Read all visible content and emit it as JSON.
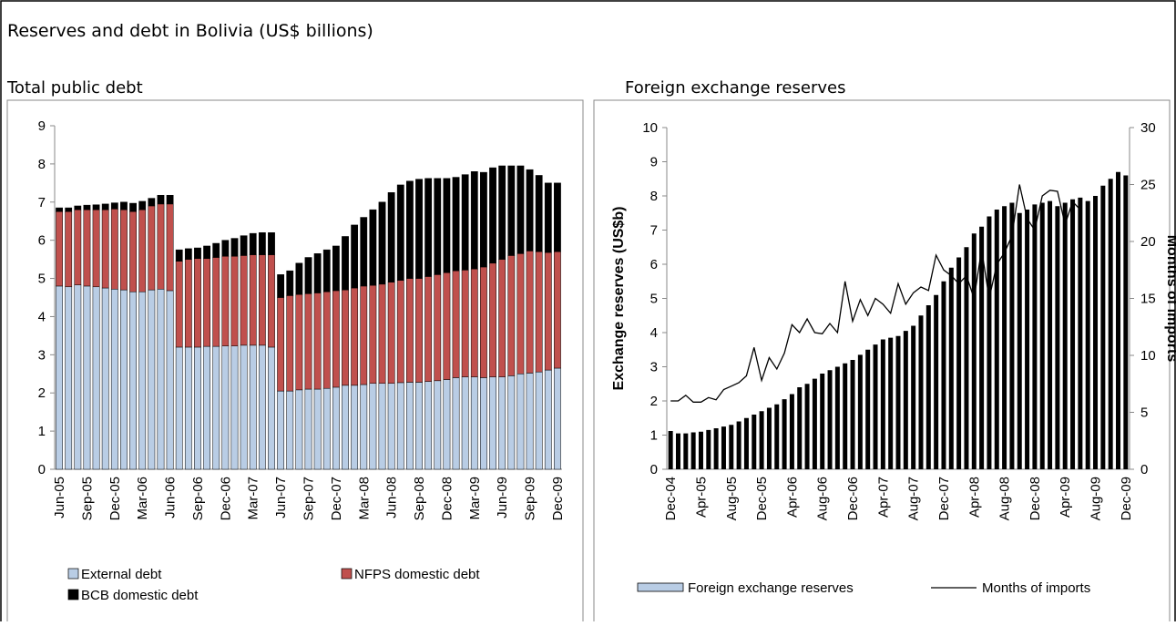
{
  "page_title": "Reserves and debt in Bolivia (US$ billions)",
  "chart_data": [
    {
      "type": "stacked_bar",
      "title": "Total public debt",
      "categories": [
        "Jun-05",
        null,
        null,
        "Sep-05",
        null,
        null,
        "Dec-05",
        null,
        null,
        "Mar-06",
        null,
        null,
        "Jun-06",
        null,
        null,
        "Sep-06",
        null,
        null,
        "Dec-06",
        null,
        null,
        "Mar-07",
        null,
        null,
        "Jun-07",
        null,
        null,
        "Sep-07",
        null,
        null,
        "Dec-07",
        null,
        null,
        "Mar-08",
        null,
        null,
        "Jun-08",
        null,
        null,
        "Sep-08",
        null,
        null,
        "Dec-08",
        null,
        null,
        "Mar-09",
        null,
        null,
        "Jun-09",
        null,
        null,
        "Sep-09",
        null,
        null,
        "Dec-09"
      ],
      "series": [
        {
          "name": "External debt",
          "color": "#b9cde5",
          "values": [
            4.8,
            4.78,
            4.83,
            4.8,
            4.78,
            4.75,
            4.72,
            4.7,
            4.65,
            4.65,
            4.7,
            4.72,
            4.68,
            3.2,
            3.2,
            3.2,
            3.22,
            3.22,
            3.23,
            3.23,
            3.25,
            3.25,
            3.25,
            3.2,
            2.05,
            2.05,
            2.08,
            2.1,
            2.1,
            2.12,
            2.15,
            2.2,
            2.2,
            2.22,
            2.25,
            2.25,
            2.25,
            2.27,
            2.28,
            2.28,
            2.3,
            2.32,
            2.35,
            2.4,
            2.42,
            2.42,
            2.4,
            2.42,
            2.42,
            2.45,
            2.5,
            2.52,
            2.55,
            2.6,
            2.65
          ]
        },
        {
          "name": "NFPS domestic debt",
          "color": "#c0504d",
          "values": [
            1.95,
            1.97,
            1.97,
            2.0,
            2.02,
            2.05,
            2.1,
            2.1,
            2.1,
            2.15,
            2.2,
            2.23,
            2.27,
            2.25,
            2.3,
            2.32,
            2.3,
            2.33,
            2.35,
            2.35,
            2.35,
            2.37,
            2.37,
            2.42,
            2.45,
            2.5,
            2.5,
            2.5,
            2.52,
            2.53,
            2.53,
            2.5,
            2.55,
            2.58,
            2.57,
            2.6,
            2.65,
            2.68,
            2.72,
            2.72,
            2.75,
            2.78,
            2.8,
            2.8,
            2.8,
            2.83,
            2.9,
            2.98,
            3.08,
            3.15,
            3.15,
            3.2,
            3.15,
            3.08,
            3.05
          ]
        },
        {
          "name": "BCB domestic debt",
          "color": "#000000",
          "values": [
            0.1,
            0.1,
            0.1,
            0.12,
            0.13,
            0.15,
            0.16,
            0.2,
            0.22,
            0.22,
            0.2,
            0.23,
            0.23,
            0.3,
            0.28,
            0.28,
            0.33,
            0.37,
            0.42,
            0.47,
            0.52,
            0.56,
            0.58,
            0.58,
            0.6,
            0.65,
            0.82,
            0.95,
            1.03,
            1.1,
            1.17,
            1.4,
            1.65,
            1.8,
            1.98,
            2.15,
            2.35,
            2.5,
            2.55,
            2.6,
            2.57,
            2.52,
            2.47,
            2.45,
            2.5,
            2.55,
            2.48,
            2.5,
            2.45,
            2.35,
            2.3,
            2.13,
            2.0,
            1.82,
            1.8
          ]
        }
      ],
      "ylim": [
        0,
        9
      ],
      "yticks": [
        0,
        1,
        2,
        3,
        4,
        5,
        6,
        7,
        8,
        9
      ]
    },
    {
      "type": "combo",
      "title": "Foreign exchange reserves",
      "ylabel": "Exchange reserves (US$b)",
      "y2label": "Months of imports",
      "categories": [
        "Dec-04",
        null,
        null,
        null,
        "Apr-05",
        null,
        null,
        null,
        "Aug-05",
        null,
        null,
        null,
        "Dec-05",
        null,
        null,
        null,
        "Apr-06",
        null,
        null,
        null,
        "Aug-06",
        null,
        null,
        null,
        "Dec-06",
        null,
        null,
        null,
        "Apr-07",
        null,
        null,
        null,
        "Aug-07",
        null,
        null,
        null,
        "Dec-07",
        null,
        null,
        null,
        "Apr-08",
        null,
        null,
        null,
        "Aug-08",
        null,
        null,
        null,
        "Dec-08",
        null,
        null,
        null,
        "Apr-09",
        null,
        null,
        null,
        "Aug-09",
        null,
        null,
        null,
        "Dec-09"
      ],
      "series": [
        {
          "name": "Foreign exchange reserves",
          "color": "#000000",
          "legend_color": "#b9cde5",
          "axis": "y",
          "values": [
            1.12,
            1.05,
            1.05,
            1.08,
            1.1,
            1.15,
            1.2,
            1.25,
            1.3,
            1.4,
            1.5,
            1.6,
            1.7,
            1.8,
            1.9,
            2.05,
            2.2,
            2.4,
            2.5,
            2.65,
            2.8,
            2.9,
            3.0,
            3.1,
            3.2,
            3.35,
            3.5,
            3.65,
            3.8,
            3.85,
            3.9,
            4.05,
            4.2,
            4.5,
            4.8,
            5.1,
            5.5,
            5.9,
            6.2,
            6.5,
            6.9,
            7.1,
            7.4,
            7.6,
            7.7,
            7.8,
            7.5,
            7.6,
            7.75,
            7.8,
            7.85,
            7.7,
            7.8,
            7.9,
            7.95,
            7.85,
            8.0,
            8.3,
            8.5,
            8.7,
            8.6
          ]
        },
        {
          "name": "Months of imports",
          "color": "#000000",
          "axis": "y2",
          "values": [
            6,
            6,
            6.5,
            5.9,
            5.9,
            6.3,
            6.1,
            7,
            7.3,
            7.6,
            8.2,
            10.7,
            7.8,
            9.8,
            8.8,
            10.2,
            12.7,
            12,
            13.2,
            12,
            11.9,
            12.8,
            12,
            16.5,
            13,
            14.9,
            13.5,
            15,
            14.5,
            13.7,
            16.3,
            14.5,
            15.5,
            16,
            15.7,
            18.8,
            17.5,
            17,
            16.3,
            17,
            15,
            19.3,
            15,
            18,
            19,
            20.5,
            25,
            22,
            21,
            24,
            24.5,
            24.4,
            21.5,
            23.5,
            22.8,
            null,
            null,
            null,
            null,
            null,
            null
          ]
        }
      ],
      "ylim": [
        0,
        10
      ],
      "yticks": [
        0,
        1,
        2,
        3,
        4,
        5,
        6,
        7,
        8,
        9,
        10
      ],
      "y2lim": [
        0,
        30
      ],
      "y2ticks": [
        0,
        5,
        10,
        15,
        20,
        25,
        30
      ]
    }
  ]
}
